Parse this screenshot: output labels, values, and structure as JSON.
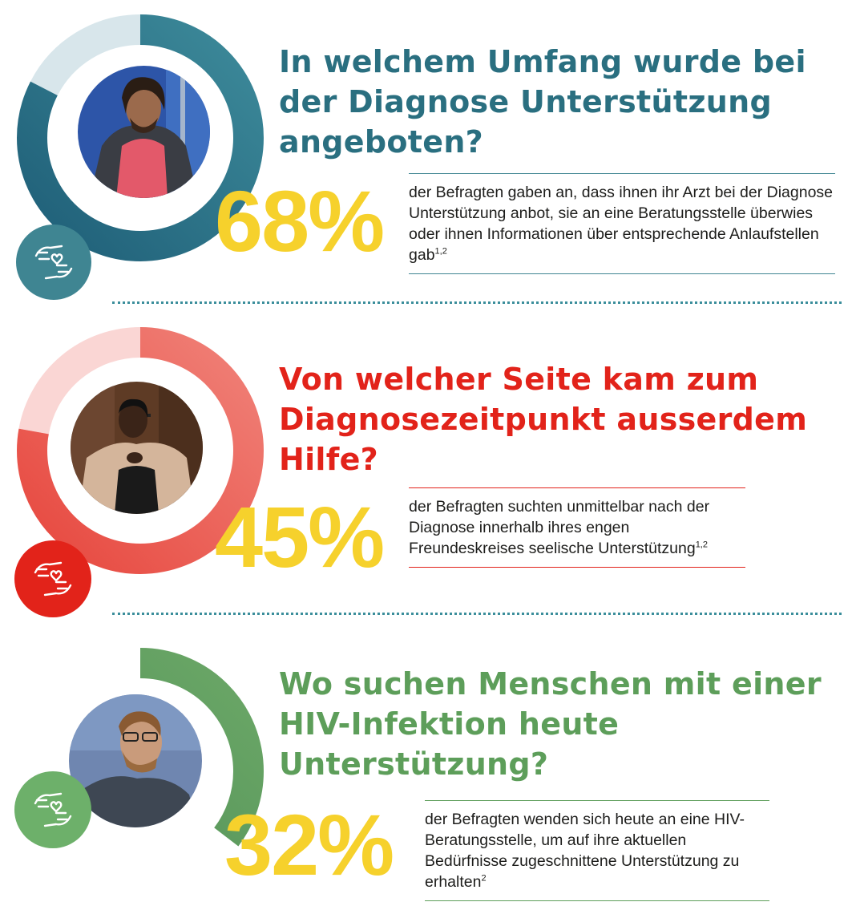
{
  "sections": [
    {
      "question": "In welchem Umfang wurde bei der Diagnose Unterstützung angeboten?",
      "percent": "68%",
      "description": "der Befragten gaben an, dass ihnen ihr Arzt bei der Diagnose Unterstützung anbot, sie an eine Beratungsstelle überwies oder ihnen Informationen über entsprechende Anlaufstellen gab",
      "footnote": "1,2",
      "accent_color": "#2a6f80",
      "icon": "caring-hands-heart-icon"
    },
    {
      "question": "Von welcher Seite kam zum Diagnosezeitpunkt ausserdem Hilfe?",
      "percent": "45%",
      "description": "der Befragten suchten unmittelbar nach der Diagnose innerhalb ihres engen Freundeskreises seelische Unterstützung",
      "footnote": "1,2",
      "accent_color": "#e2231a",
      "icon": "caring-hands-heart-icon"
    },
    {
      "question": "Wo suchen Menschen mit einer HIV-Infektion heute Unterstützung?",
      "percent": "32%",
      "description": "der Befragten wenden sich heute an eine HIV-Beratungsstelle, um auf ihre aktuellen Bedürfnisse zugeschnittene Unterstützung zu erhalten",
      "footnote": "2",
      "accent_color": "#5d9e5a",
      "icon": "caring-hands-heart-icon"
    }
  ],
  "colors": {
    "percent_yellow": "#f6d12c",
    "divider_teal": "#3b8e9b"
  }
}
